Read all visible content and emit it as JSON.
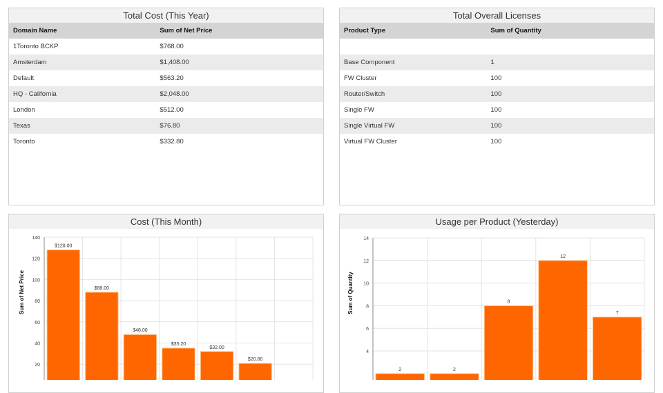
{
  "total_cost": {
    "title": "Total Cost (This Year)",
    "columns": [
      "Domain Name",
      "Sum of Net Price"
    ],
    "rows": [
      [
        "1Toronto BCKP",
        "$768.00"
      ],
      [
        "Amsterdam",
        "$1,408.00"
      ],
      [
        "Default",
        "$563.20"
      ],
      [
        "HQ - California",
        "$2,048.00"
      ],
      [
        "London",
        "$512.00"
      ],
      [
        "Texas",
        "$76.80"
      ],
      [
        "Toronto",
        "$332.80"
      ]
    ]
  },
  "licenses": {
    "title": "Total Overall Licenses",
    "columns": [
      "Product Type",
      "Sum of Quantity"
    ],
    "rows": [
      [
        "",
        ""
      ],
      [
        "Base Component",
        "1"
      ],
      [
        "FW Cluster",
        "100"
      ],
      [
        "Router/Switch",
        "100"
      ],
      [
        "Single FW",
        "100"
      ],
      [
        "Single Virtual FW",
        "100"
      ],
      [
        "Virtual FW Cluster",
        "100"
      ]
    ]
  },
  "chart_data": [
    {
      "type": "bar",
      "title": "Cost (This Month)",
      "ylabel": "Sum of Net Price",
      "ylim": [
        0,
        140
      ],
      "yticks": [
        20,
        40,
        60,
        80,
        100,
        120,
        140
      ],
      "values": [
        128,
        88,
        48,
        35.2,
        32,
        20.8
      ],
      "labels": [
        "$128.00",
        "$88.00",
        "$48.00",
        "$35.20",
        "$32.00",
        "$20.80"
      ],
      "color": "#ff6600",
      "grid": true
    },
    {
      "type": "bar",
      "title": "Usage per Product (Yesterday)",
      "ylabel": "Sum of Quantity",
      "ylim": [
        0,
        14
      ],
      "yticks": [
        4,
        6,
        8,
        10,
        12,
        14
      ],
      "values": [
        2,
        2,
        8,
        12,
        7
      ],
      "labels": [
        "2",
        "2",
        "8",
        "12",
        "7"
      ],
      "color": "#ff6600",
      "grid": true
    }
  ]
}
